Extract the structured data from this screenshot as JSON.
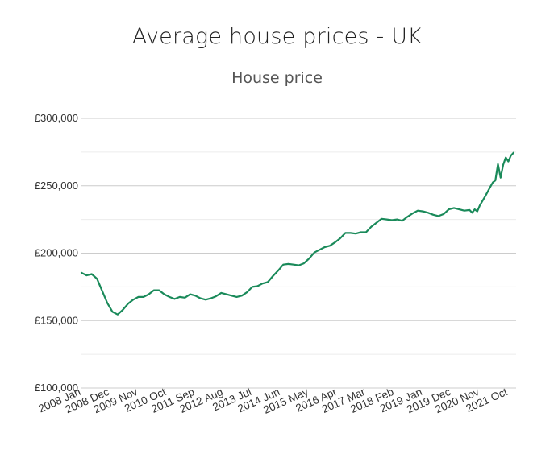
{
  "chart_data": {
    "type": "line",
    "title": "Average house prices - UK",
    "subtitle": "House price",
    "xlabel": "",
    "ylabel": "",
    "ylim": [
      100000,
      300000
    ],
    "yticks": [
      100000,
      150000,
      200000,
      250000,
      300000
    ],
    "ytick_labels": [
      "£100,000",
      "£150,000",
      "£200,000",
      "£250,000",
      "£300,000"
    ],
    "x_range": [
      "2008-01",
      "2022-01"
    ],
    "xtick_labels": [
      "2008 Jan",
      "2008 Dec",
      "2009 Nov",
      "2010 Oct",
      "2011 Sep",
      "2012 Aug",
      "2013 Jul",
      "2014 Jun",
      "2015 May",
      "2016 Apr",
      "2017 Mar",
      "2018 Feb",
      "2019 Jan",
      "2019 Dec",
      "2020 Nov",
      "2021 Oct"
    ],
    "xtick_dates": [
      "2008-01",
      "2008-12",
      "2009-11",
      "2010-10",
      "2011-09",
      "2012-08",
      "2013-07",
      "2014-06",
      "2015-05",
      "2016-04",
      "2017-03",
      "2018-02",
      "2019-01",
      "2019-12",
      "2020-11",
      "2021-10"
    ],
    "grid": true,
    "line_color": "#1a8a5a",
    "series": [
      {
        "name": "",
        "points": [
          [
            "2008-01",
            185500
          ],
          [
            "2008-03",
            183500
          ],
          [
            "2008-05",
            184500
          ],
          [
            "2008-07",
            181000
          ],
          [
            "2008-09",
            172000
          ],
          [
            "2008-11",
            163000
          ],
          [
            "2009-01",
            156500
          ],
          [
            "2009-03",
            154500
          ],
          [
            "2009-05",
            158000
          ],
          [
            "2009-07",
            162500
          ],
          [
            "2009-09",
            165500
          ],
          [
            "2009-11",
            167500
          ],
          [
            "2010-01",
            167500
          ],
          [
            "2010-03",
            169500
          ],
          [
            "2010-05",
            172500
          ],
          [
            "2010-07",
            172500
          ],
          [
            "2010-09",
            169500
          ],
          [
            "2010-11",
            167500
          ],
          [
            "2011-01",
            166000
          ],
          [
            "2011-03",
            167500
          ],
          [
            "2011-05",
            167000
          ],
          [
            "2011-07",
            169500
          ],
          [
            "2011-09",
            168500
          ],
          [
            "2011-11",
            166500
          ],
          [
            "2012-01",
            165500
          ],
          [
            "2012-03",
            166500
          ],
          [
            "2012-05",
            168000
          ],
          [
            "2012-07",
            170500
          ],
          [
            "2012-09",
            169500
          ],
          [
            "2012-11",
            168500
          ],
          [
            "2013-01",
            167500
          ],
          [
            "2013-03",
            168500
          ],
          [
            "2013-05",
            171000
          ],
          [
            "2013-07",
            175000
          ],
          [
            "2013-09",
            175500
          ],
          [
            "2013-11",
            177500
          ],
          [
            "2014-01",
            178500
          ],
          [
            "2014-03",
            183000
          ],
          [
            "2014-05",
            187000
          ],
          [
            "2014-07",
            191500
          ],
          [
            "2014-09",
            192000
          ],
          [
            "2014-11",
            191500
          ],
          [
            "2015-01",
            191000
          ],
          [
            "2015-03",
            192500
          ],
          [
            "2015-05",
            196000
          ],
          [
            "2015-07",
            200500
          ],
          [
            "2015-09",
            202500
          ],
          [
            "2015-11",
            204500
          ],
          [
            "2016-01",
            205500
          ],
          [
            "2016-03",
            208000
          ],
          [
            "2016-05",
            211000
          ],
          [
            "2016-07",
            215000
          ],
          [
            "2016-09",
            215000
          ],
          [
            "2016-11",
            214500
          ],
          [
            "2017-01",
            215500
          ],
          [
            "2017-03",
            215500
          ],
          [
            "2017-05",
            219500
          ],
          [
            "2017-07",
            222500
          ],
          [
            "2017-09",
            225500
          ],
          [
            "2017-11",
            225000
          ],
          [
            "2018-01",
            224500
          ],
          [
            "2018-03",
            225000
          ],
          [
            "2018-05",
            224000
          ],
          [
            "2018-07",
            227000
          ],
          [
            "2018-09",
            229500
          ],
          [
            "2018-11",
            231500
          ],
          [
            "2019-01",
            231000
          ],
          [
            "2019-03",
            230000
          ],
          [
            "2019-05",
            228500
          ],
          [
            "2019-07",
            227500
          ],
          [
            "2019-09",
            229000
          ],
          [
            "2019-11",
            232500
          ],
          [
            "2020-01",
            233500
          ],
          [
            "2020-03",
            232500
          ],
          [
            "2020-05",
            231500
          ],
          [
            "2020-07",
            232000
          ],
          [
            "2020-08",
            230000
          ],
          [
            "2020-09",
            232500
          ],
          [
            "2020-10",
            231000
          ],
          [
            "2020-11",
            235500
          ],
          [
            "2021-01",
            242000
          ],
          [
            "2021-03",
            249000
          ],
          [
            "2021-04",
            252500
          ],
          [
            "2021-05",
            254000
          ],
          [
            "2021-06",
            266000
          ],
          [
            "2021-07",
            256000
          ],
          [
            "2021-08",
            265500
          ],
          [
            "2021-09",
            271000
          ],
          [
            "2021-10",
            268000
          ],
          [
            "2021-11",
            272500
          ],
          [
            "2021-12",
            274500
          ]
        ]
      }
    ]
  }
}
